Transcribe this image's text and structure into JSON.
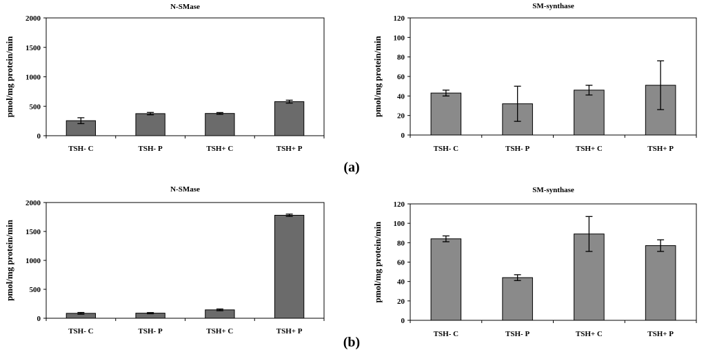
{
  "chart_data": [
    {
      "id": "a-nsmase",
      "type": "bar",
      "title": "N-SMase",
      "ylabel": "pmol/mg protein/min",
      "xlabel": "",
      "categories": [
        "TSH- C",
        "TSH- P",
        "TSH+ C",
        "TSH+ P"
      ],
      "values": [
        255,
        375,
        378,
        578
      ],
      "errors": [
        50,
        20,
        15,
        25
      ],
      "ylim": [
        0,
        2000
      ],
      "yticks": [
        0,
        500,
        1000,
        1500,
        2000
      ],
      "bar_color": "#6b6b6b"
    },
    {
      "id": "a-smsynthase",
      "type": "bar",
      "title": "SM-synthase",
      "ylabel": "pmol/mg protein/min",
      "xlabel": "",
      "categories": [
        "TSH- C",
        "TSH- P",
        "TSH+ C",
        "TSH+ P"
      ],
      "values": [
        43,
        32,
        46,
        51
      ],
      "errors": [
        3,
        18,
        5,
        25
      ],
      "ylim": [
        0,
        120
      ],
      "yticks": [
        0,
        20,
        40,
        60,
        80,
        100,
        120
      ],
      "bar_color": "#8a8a8a"
    },
    {
      "id": "b-nsmase",
      "type": "bar",
      "title": "N-SMase",
      "ylabel": "pmol/mg protein/min",
      "xlabel": "",
      "categories": [
        "TSH- C",
        "TSH- P",
        "TSH+ C",
        "TSH+ P"
      ],
      "values": [
        85,
        88,
        145,
        1780
      ],
      "errors": [
        15,
        10,
        15,
        20
      ],
      "ylim": [
        0,
        2000
      ],
      "yticks": [
        0,
        500,
        1000,
        1500,
        2000
      ],
      "bar_color": "#6b6b6b"
    },
    {
      "id": "b-smsynthase",
      "type": "bar",
      "title": "SM-synthase",
      "ylabel": "pmol/mg protein/min",
      "xlabel": "",
      "categories": [
        "TSH- C",
        "TSH- P",
        "TSH+ C",
        "TSH+ P"
      ],
      "values": [
        84,
        44,
        89,
        77
      ],
      "errors": [
        3,
        3,
        18,
        6
      ],
      "ylim": [
        0,
        120
      ],
      "yticks": [
        0,
        20,
        40,
        60,
        80,
        100,
        120
      ],
      "bar_color": "#8a8a8a"
    }
  ],
  "panel_labels": {
    "a": "(a)",
    "b": "(b)"
  },
  "colors": {
    "axis": "#000000",
    "frame": "#000000",
    "error": "#000000"
  }
}
